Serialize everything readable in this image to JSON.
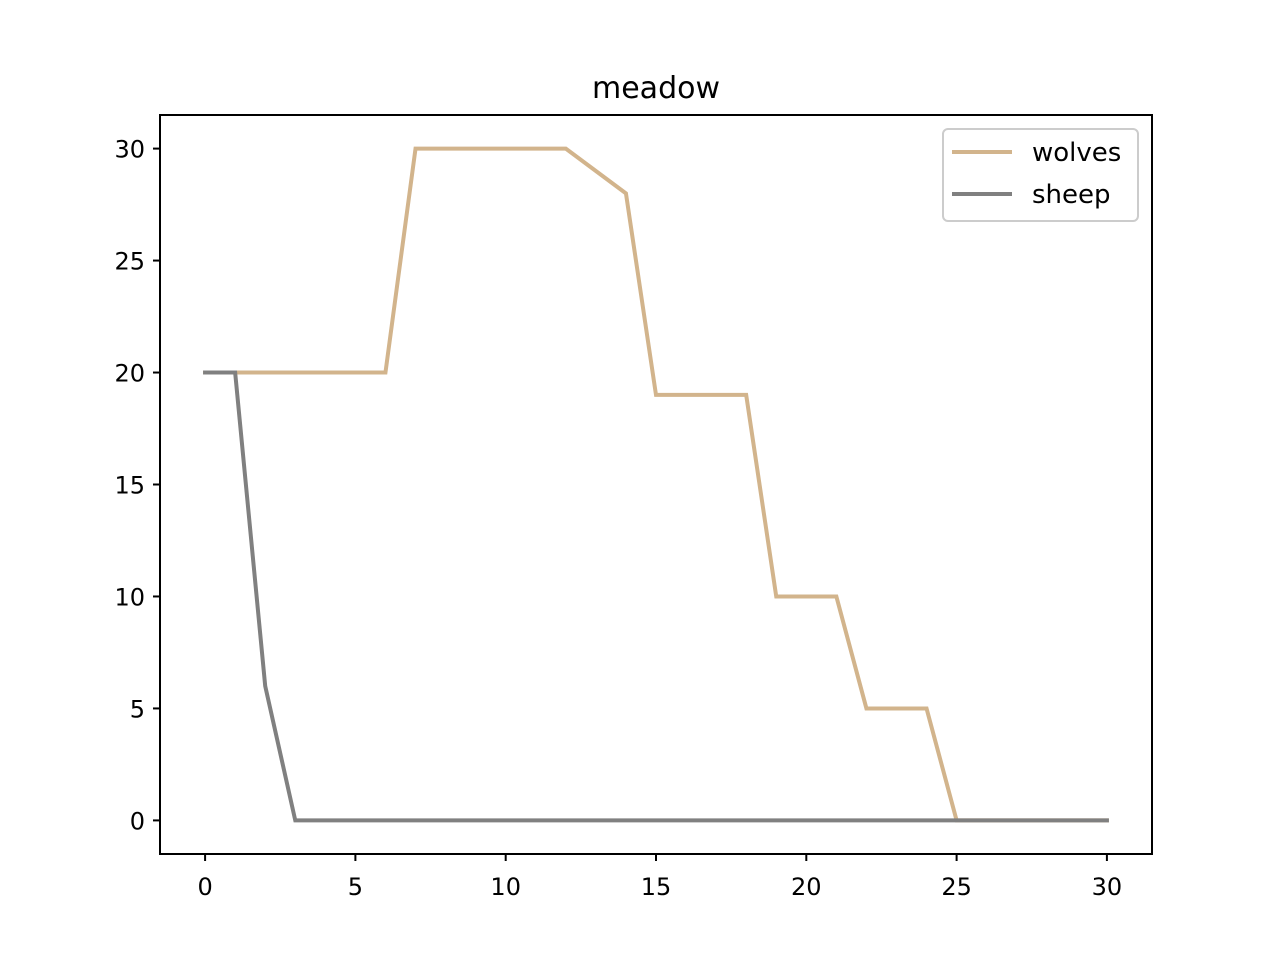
{
  "chart_data": {
    "type": "line",
    "title": "meadow",
    "xlabel": "",
    "ylabel": "",
    "xlim": [
      -1.5,
      31.5
    ],
    "ylim": [
      -1.5,
      31.5
    ],
    "x_ticks": [
      0,
      5,
      10,
      15,
      20,
      25,
      30
    ],
    "y_ticks": [
      0,
      5,
      10,
      15,
      20,
      25,
      30
    ],
    "grid": false,
    "legend_position": "top-right",
    "x": [
      0,
      1,
      2,
      3,
      4,
      5,
      6,
      7,
      8,
      9,
      10,
      11,
      12,
      13,
      14,
      15,
      16,
      17,
      18,
      19,
      20,
      21,
      22,
      23,
      24,
      25,
      26,
      27,
      28,
      29,
      30
    ],
    "series": [
      {
        "name": "wolves",
        "color": "#d2b48c",
        "values": [
          20,
          20,
          20,
          20,
          20,
          20,
          20,
          30,
          30,
          30,
          30,
          30,
          30,
          29,
          28,
          19,
          19,
          19,
          19,
          10,
          10,
          10,
          5,
          5,
          5,
          0,
          0,
          0,
          0,
          0,
          0
        ]
      },
      {
        "name": "sheep",
        "color": "#808080",
        "values": [
          20,
          20,
          6,
          0,
          0,
          0,
          0,
          0,
          0,
          0,
          0,
          0,
          0,
          0,
          0,
          0,
          0,
          0,
          0,
          0,
          0,
          0,
          0,
          0,
          0,
          0,
          0,
          0,
          0,
          0,
          0
        ]
      }
    ]
  }
}
